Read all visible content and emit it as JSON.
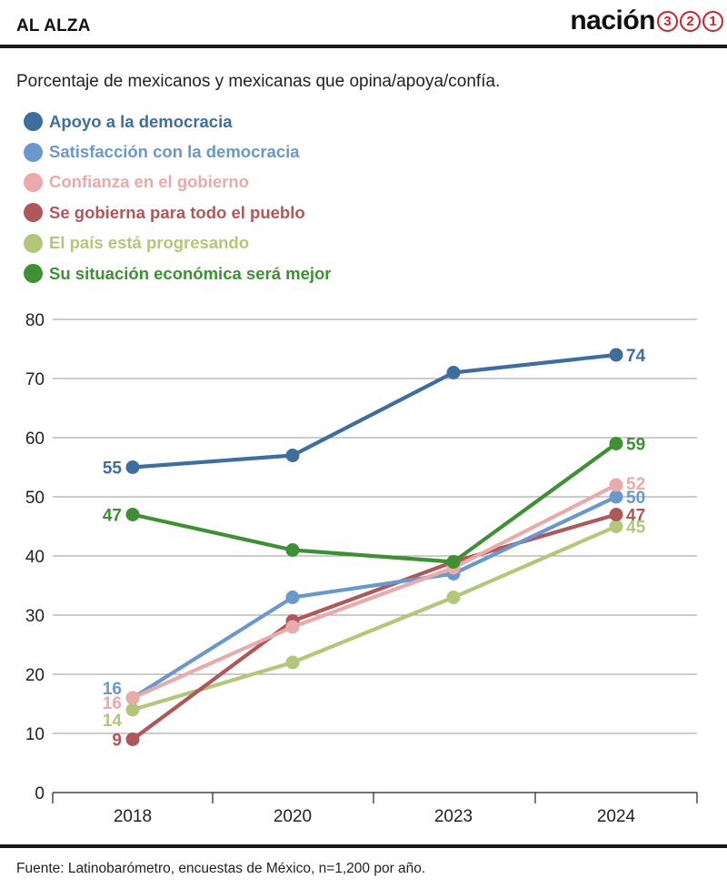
{
  "header": {
    "section": "AL ALZA",
    "brand_word": "nación",
    "brand_digits": [
      "3",
      "2",
      "1"
    ],
    "brand_color": "#d0202a"
  },
  "chart_data": {
    "type": "line",
    "title": "",
    "subtitle": "Porcentaje de mexicanos y mexicanas que opina/apoya/confía.",
    "categories": [
      "2018",
      "2020",
      "2023",
      "2024"
    ],
    "ylim": [
      0,
      80
    ],
    "yticks": [
      "0",
      "10",
      "20",
      "30",
      "40",
      "50",
      "60",
      "70",
      "80"
    ],
    "grid": true,
    "legend_position": "top-left",
    "series": [
      {
        "name": "Apoyo a la democracia",
        "color": "#3e6e9e",
        "values": [
          55,
          57,
          71,
          74
        ],
        "first_label": "55",
        "last_label": "74"
      },
      {
        "name": "Satisfacción con la democracia",
        "color": "#6a98cb",
        "values": [
          16,
          33,
          37,
          50
        ],
        "first_label": "16",
        "last_label": "50"
      },
      {
        "name": "Confianza en el gobierno",
        "color": "#e8aaaa",
        "values": [
          16,
          28,
          38,
          52
        ],
        "first_label": "16",
        "last_label": "52"
      },
      {
        "name": "Se gobierna para todo el pueblo",
        "color": "#b0575a",
        "values": [
          9,
          29,
          39,
          47
        ],
        "first_label": "9",
        "last_label": "47"
      },
      {
        "name": "El país está progresando",
        "color": "#b3c77a",
        "values": [
          14,
          22,
          33,
          45
        ],
        "first_label": "14",
        "last_label": "45"
      },
      {
        "name": "Su situación económica será mejor",
        "color": "#3f8f35",
        "values": [
          47,
          41,
          39,
          59
        ],
        "first_label": "47",
        "last_label": "59"
      }
    ]
  },
  "footer": {
    "source": "Fuente: Latinobarómetro, encuestas de México, n=1,200 por año."
  }
}
